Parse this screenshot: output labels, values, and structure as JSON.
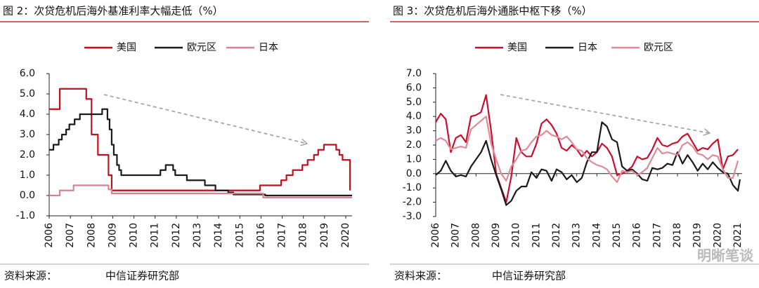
{
  "chart_data": [
    {
      "type": "line",
      "step": true,
      "title": "图 2：次贷危机后海外基准利率大幅走低（%）",
      "source_label": "资料来源：",
      "source": "中信证券研究部",
      "xlim": [
        2006,
        2020.3
      ],
      "xticks": [
        2006,
        2007,
        2008,
        2009,
        2010,
        2011,
        2012,
        2013,
        2014,
        2015,
        2016,
        2017,
        2018,
        2019,
        2020
      ],
      "ylim": [
        -1,
        6
      ],
      "yticks": [
        {
          "value": 6,
          "label": "6.0"
        },
        {
          "value": 5,
          "label": "5.0"
        },
        {
          "value": 4,
          "label": "4.0"
        },
        {
          "value": 3,
          "label": "3.0"
        },
        {
          "value": 2,
          "label": "2.0"
        },
        {
          "value": 1,
          "label": "1.0"
        },
        {
          "value": 0,
          "label": "0.0"
        },
        {
          "value": -1,
          "label": "-1.0"
        }
      ],
      "series": [
        {
          "name": "美国",
          "color": "#c0101f",
          "x": [
            2006.0,
            2006.5,
            2007.6,
            2007.75,
            2008.0,
            2008.3,
            2008.8,
            2008.95,
            2015.95,
            2016.95,
            2017.2,
            2017.5,
            2017.95,
            2018.2,
            2018.5,
            2018.7,
            2018.97,
            2019.55,
            2019.7,
            2019.85,
            2020.2
          ],
          "values": [
            4.25,
            5.25,
            5.25,
            4.75,
            3.0,
            2.0,
            1.0,
            0.25,
            0.5,
            0.75,
            1.0,
            1.25,
            1.5,
            1.75,
            2.0,
            2.25,
            2.5,
            2.25,
            2.0,
            1.75,
            0.25
          ]
        },
        {
          "name": "欧元区",
          "color": "#1a1a1a",
          "x": [
            2006.0,
            2006.2,
            2006.45,
            2006.6,
            2006.8,
            2006.95,
            2007.2,
            2007.45,
            2008.5,
            2008.75,
            2008.85,
            2008.95,
            2009.05,
            2009.2,
            2009.3,
            2009.4,
            2011.25,
            2011.5,
            2011.85,
            2011.95,
            2012.5,
            2013.35,
            2013.85,
            2014.45,
            2014.7,
            2016.2,
            2020.3
          ],
          "values": [
            2.25,
            2.5,
            2.75,
            3.0,
            3.25,
            3.5,
            3.75,
            4.0,
            4.25,
            3.75,
            3.25,
            2.5,
            2.0,
            1.5,
            1.25,
            1.0,
            1.25,
            1.5,
            1.25,
            1.0,
            0.75,
            0.5,
            0.25,
            0.15,
            0.05,
            0.0,
            0.0
          ]
        },
        {
          "name": "日本",
          "color": "#d9828f",
          "x": [
            2006.0,
            2006.5,
            2007.15,
            2008.8,
            2008.95,
            2016.1,
            2020.3
          ],
          "values": [
            0.0,
            0.25,
            0.5,
            0.3,
            0.1,
            -0.1,
            -0.1
          ]
        }
      ]
    },
    {
      "type": "line",
      "step": false,
      "title": "图 3：次贷危机后海外通胀中枢下移（%）",
      "source_label": "资料来源：",
      "source": "中信证券研究部",
      "xlim": [
        2006,
        2021.2
      ],
      "xticks": [
        2006,
        2007,
        2008,
        2009,
        2010,
        2011,
        2012,
        2013,
        2014,
        2015,
        2016,
        2017,
        2018,
        2019,
        2020,
        2021
      ],
      "ylim": [
        -3,
        7
      ],
      "yticks": [
        {
          "value": 7,
          "label": "7.0"
        },
        {
          "value": 6,
          "label": "6.0"
        },
        {
          "value": 5,
          "label": "5.0"
        },
        {
          "value": 4,
          "label": "4.0"
        },
        {
          "value": 3,
          "label": "3.0"
        },
        {
          "value": 2,
          "label": "2.0"
        },
        {
          "value": 1,
          "label": "1.0"
        },
        {
          "value": 0,
          "label": "0.0"
        },
        {
          "value": -1,
          "label": "-1.0"
        },
        {
          "value": -2,
          "label": "-2.0"
        },
        {
          "value": -3,
          "label": "-3.0"
        }
      ],
      "series": [
        {
          "name": "美国",
          "color": "#c8102e",
          "x": [
            2006.0,
            2006.25,
            2006.5,
            2006.75,
            2007.0,
            2007.25,
            2007.5,
            2007.75,
            2008.0,
            2008.25,
            2008.5,
            2008.75,
            2009.0,
            2009.25,
            2009.5,
            2009.75,
            2010.0,
            2010.25,
            2010.5,
            2010.75,
            2011.0,
            2011.25,
            2011.5,
            2011.75,
            2012.0,
            2012.25,
            2012.5,
            2012.75,
            2013.0,
            2013.25,
            2013.5,
            2013.75,
            2014.0,
            2014.25,
            2014.5,
            2014.75,
            2015.0,
            2015.25,
            2015.5,
            2015.75,
            2016.0,
            2016.25,
            2016.5,
            2016.75,
            2017.0,
            2017.25,
            2017.5,
            2017.75,
            2018.0,
            2018.25,
            2018.5,
            2018.75,
            2019.0,
            2019.25,
            2019.5,
            2019.75,
            2020.0,
            2020.25,
            2020.5,
            2020.75,
            2021.0
          ],
          "values": [
            3.6,
            4.2,
            3.8,
            1.5,
            2.5,
            2.7,
            2.2,
            4.0,
            4.1,
            4.3,
            5.5,
            3.0,
            0.0,
            -1.0,
            -2.0,
            -0.2,
            2.5,
            1.5,
            1.2,
            1.2,
            2.1,
            3.5,
            3.8,
            3.4,
            2.8,
            1.8,
            1.6,
            2.0,
            1.7,
            1.2,
            1.6,
            1.2,
            1.5,
            2.1,
            1.8,
            1.2,
            -0.1,
            0.0,
            0.2,
            0.5,
            1.2,
            1.0,
            1.1,
            1.7,
            2.5,
            2.0,
            1.9,
            2.1,
            2.2,
            2.6,
            2.8,
            2.2,
            1.6,
            1.8,
            1.7,
            2.1,
            2.4,
            0.3,
            1.2,
            1.3,
            1.7
          ]
        },
        {
          "name": "日本",
          "color": "#1a1a1a",
          "x": [
            2006.0,
            2006.25,
            2006.5,
            2006.75,
            2007.0,
            2007.25,
            2007.5,
            2007.75,
            2008.0,
            2008.25,
            2008.5,
            2008.75,
            2009.0,
            2009.25,
            2009.5,
            2009.75,
            2010.0,
            2010.25,
            2010.5,
            2010.75,
            2011.0,
            2011.25,
            2011.5,
            2011.75,
            2012.0,
            2012.25,
            2012.5,
            2012.75,
            2013.0,
            2013.25,
            2013.5,
            2013.75,
            2014.0,
            2014.25,
            2014.5,
            2014.75,
            2015.0,
            2015.25,
            2015.5,
            2015.75,
            2016.0,
            2016.25,
            2016.5,
            2016.75,
            2017.0,
            2017.25,
            2017.5,
            2017.75,
            2018.0,
            2018.25,
            2018.5,
            2018.75,
            2019.0,
            2019.25,
            2019.5,
            2019.75,
            2020.0,
            2020.25,
            2020.5,
            2020.75,
            2021.0,
            2021.1
          ],
          "values": [
            -0.1,
            0.2,
            0.9,
            0.2,
            -0.2,
            -0.1,
            -0.2,
            0.5,
            1.0,
            1.5,
            2.3,
            1.0,
            -0.1,
            -1.1,
            -2.2,
            -1.9,
            -1.2,
            -0.9,
            -0.9,
            0.1,
            -0.3,
            0.3,
            0.2,
            -0.5,
            0.3,
            0.1,
            -0.4,
            -0.1,
            -0.6,
            -0.3,
            0.8,
            1.5,
            1.5,
            3.6,
            3.3,
            2.4,
            2.2,
            0.5,
            0.2,
            0.3,
            0.0,
            -0.4,
            -0.5,
            0.4,
            0.3,
            0.4,
            0.7,
            0.6,
            1.5,
            0.7,
            1.3,
            0.8,
            0.2,
            0.7,
            0.3,
            0.8,
            0.4,
            0.1,
            0.0,
            -0.8,
            -1.2,
            -0.4
          ]
        },
        {
          "name": "欧元区",
          "color": "#e08a96",
          "x": [
            2006.0,
            2006.25,
            2006.5,
            2006.75,
            2007.0,
            2007.25,
            2007.5,
            2007.75,
            2008.0,
            2008.25,
            2008.5,
            2008.75,
            2009.0,
            2009.25,
            2009.5,
            2009.75,
            2010.0,
            2010.25,
            2010.5,
            2010.75,
            2011.0,
            2011.25,
            2011.5,
            2011.75,
            2012.0,
            2012.25,
            2012.5,
            2012.75,
            2013.0,
            2013.25,
            2013.5,
            2013.75,
            2014.0,
            2014.25,
            2014.5,
            2014.75,
            2015.0,
            2015.25,
            2015.5,
            2015.75,
            2016.0,
            2016.25,
            2016.5,
            2016.75,
            2017.0,
            2017.25,
            2017.5,
            2017.75,
            2018.0,
            2018.25,
            2018.5,
            2018.75,
            2019.0,
            2019.25,
            2019.5,
            2019.75,
            2020.0,
            2020.25,
            2020.5,
            2020.75,
            2021.0
          ],
          "values": [
            2.3,
            2.5,
            2.3,
            1.7,
            1.8,
            1.9,
            1.8,
            3.1,
            3.4,
            3.7,
            4.0,
            2.1,
            1.0,
            0.0,
            -0.5,
            0.5,
            1.0,
            1.6,
            1.7,
            2.2,
            2.6,
            2.7,
            3.0,
            2.7,
            2.6,
            2.4,
            2.6,
            2.2,
            1.7,
            1.6,
            1.1,
            0.8,
            0.6,
            0.5,
            0.3,
            -0.2,
            -0.6,
            0.2,
            0.1,
            0.2,
            -0.1,
            0.1,
            0.4,
            1.1,
            1.8,
            1.4,
            1.5,
            1.4,
            1.3,
            2.0,
            2.2,
            1.9,
            1.4,
            1.3,
            1.0,
            1.3,
            1.2,
            0.3,
            -0.3,
            -0.3,
            0.9
          ]
        }
      ]
    }
  ],
  "watermark": "明晰笔谈"
}
